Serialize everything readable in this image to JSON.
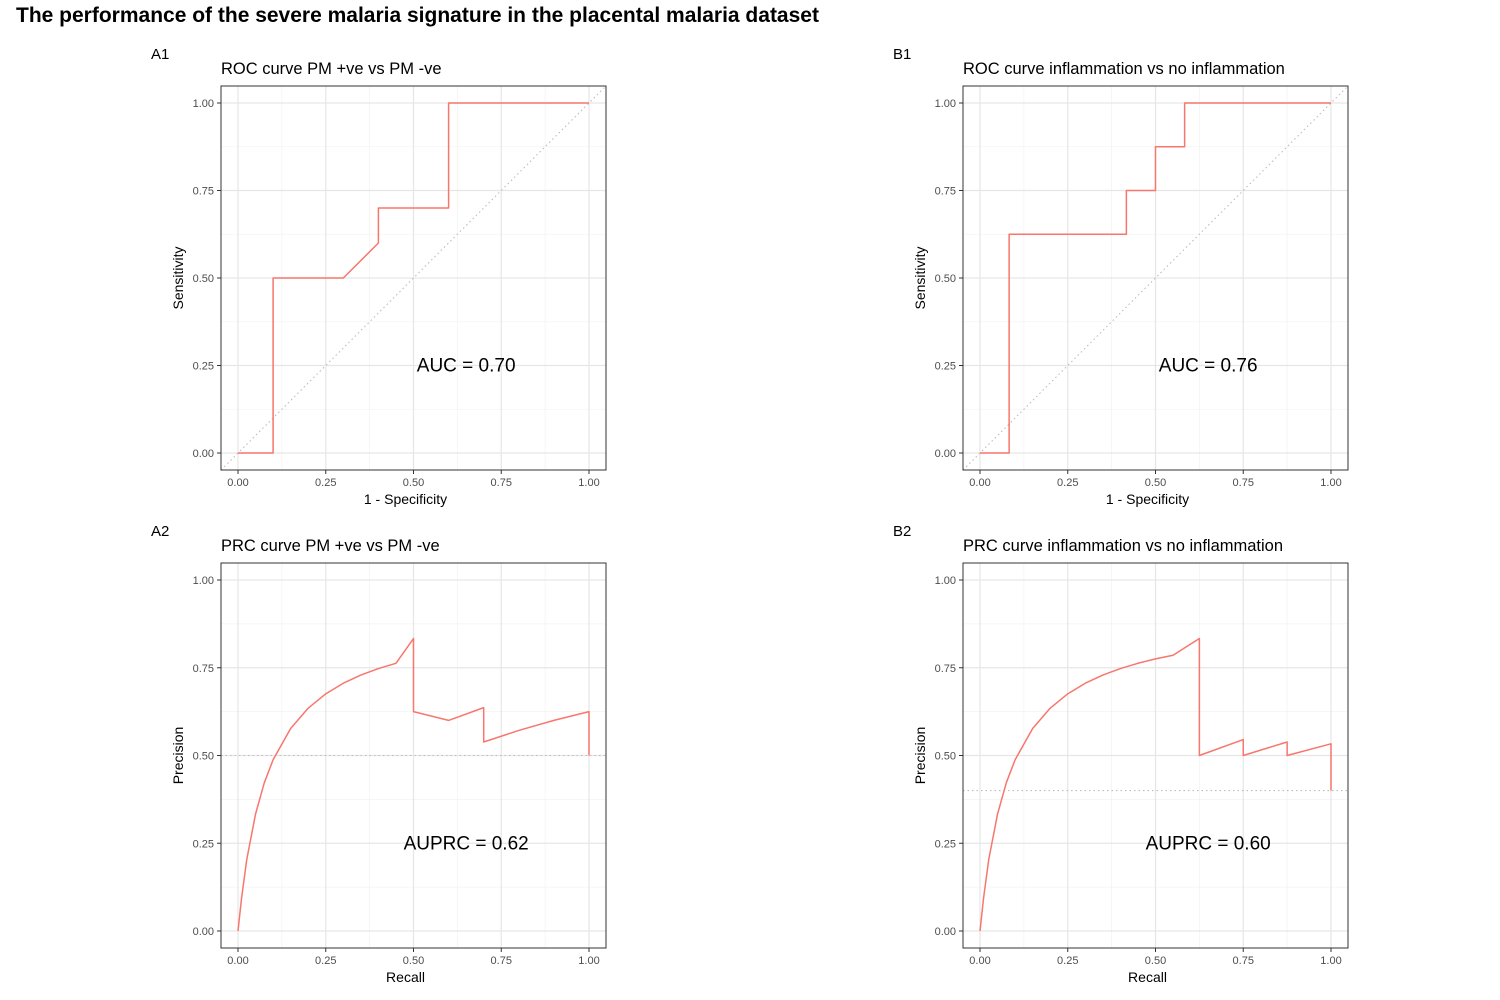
{
  "figure_title": "The performance of the severe malaria signature in the placental malaria dataset",
  "colors": {
    "curve": "#F8766D",
    "reference": "#BDBDBD",
    "grid_major": "#E6E6E6",
    "grid_minor": "#F3F3F3",
    "frame": "#333333"
  },
  "chart_data": [
    {
      "panel_tag": "A1",
      "type": "line",
      "title": "ROC curve PM +ve vs PM -ve",
      "xlabel": "1 - Specificity",
      "ylabel": "Sensitivity",
      "xlim": [
        0,
        1
      ],
      "ylim": [
        0,
        1
      ],
      "x_ticks": [
        "0.00",
        "0.25",
        "0.50",
        "0.75",
        "1.00"
      ],
      "y_ticks": [
        "0.00",
        "0.25",
        "0.50",
        "0.75",
        "1.00"
      ],
      "annotation": "AUC = 0.70",
      "grid": true,
      "reference": {
        "kind": "diagonal",
        "style": "dotted"
      },
      "series": [
        {
          "x": [
            0,
            0.1,
            0.1,
            0.3,
            0.4,
            0.4,
            0.6,
            0.6,
            1.0
          ],
          "y": [
            0,
            0,
            0.5,
            0.5,
            0.6,
            0.7,
            0.7,
            1.0,
            1.0
          ]
        }
      ]
    },
    {
      "panel_tag": "B1",
      "type": "line",
      "title": "ROC curve inflammation vs no inflammation",
      "xlabel": "1 - Specificity",
      "ylabel": "Sensitivity",
      "xlim": [
        0,
        1
      ],
      "ylim": [
        0,
        1
      ],
      "x_ticks": [
        "0.00",
        "0.25",
        "0.50",
        "0.75",
        "1.00"
      ],
      "y_ticks": [
        "0.00",
        "0.25",
        "0.50",
        "0.75",
        "1.00"
      ],
      "annotation": "AUC = 0.76",
      "grid": true,
      "reference": {
        "kind": "diagonal",
        "style": "dotted"
      },
      "series": [
        {
          "x": [
            0,
            0.083,
            0.083,
            0.417,
            0.417,
            0.5,
            0.5,
            0.583,
            0.583,
            1.0
          ],
          "y": [
            0,
            0,
            0.625,
            0.625,
            0.75,
            0.75,
            0.875,
            0.875,
            1.0,
            1.0
          ]
        }
      ]
    },
    {
      "panel_tag": "A2",
      "type": "line",
      "title": "PRC curve PM +ve vs PM -ve",
      "xlabel": "Recall",
      "ylabel": "Precision",
      "xlim": [
        0,
        1
      ],
      "ylim": [
        0,
        1
      ],
      "x_ticks": [
        "0.00",
        "0.25",
        "0.50",
        "0.75",
        "1.00"
      ],
      "y_ticks": [
        "0.00",
        "0.25",
        "0.50",
        "0.75",
        "1.00"
      ],
      "annotation": "AUPRC = 0.62",
      "grid": true,
      "reference": {
        "kind": "horizontal",
        "value": 0.5,
        "style": "dotted"
      },
      "series": [
        {
          "x": [
            0,
            0.01,
            0.025,
            0.05,
            0.075,
            0.1,
            0.15,
            0.2,
            0.25,
            0.3,
            0.35,
            0.4,
            0.45,
            0.5,
            0.5,
            0.6,
            0.7,
            0.7,
            0.8,
            0.9,
            1.0,
            1.0
          ],
          "y": [
            0,
            0.0926,
            0.2041,
            0.3333,
            0.4225,
            0.4878,
            0.5769,
            0.6349,
            0.6757,
            0.7059,
            0.7292,
            0.7477,
            0.7627,
            0.8333,
            0.625,
            0.6,
            0.6364,
            0.5385,
            0.5714,
            0.6,
            0.625,
            0.5
          ]
        }
      ]
    },
    {
      "panel_tag": "B2",
      "type": "line",
      "title": "PRC curve inflammation vs no inflammation",
      "xlabel": "Recall",
      "ylabel": "Precision",
      "xlim": [
        0,
        1
      ],
      "ylim": [
        0,
        1
      ],
      "x_ticks": [
        "0.00",
        "0.25",
        "0.50",
        "0.75",
        "1.00"
      ],
      "y_ticks": [
        "0.00",
        "0.25",
        "0.50",
        "0.75",
        "1.00"
      ],
      "annotation": "AUPRC = 0.60",
      "grid": true,
      "reference": {
        "kind": "horizontal",
        "value": 0.4,
        "style": "dotted"
      },
      "series": [
        {
          "x": [
            0,
            0.01,
            0.025,
            0.05,
            0.075,
            0.1,
            0.15,
            0.2,
            0.25,
            0.3,
            0.35,
            0.4,
            0.45,
            0.5,
            0.55,
            0.625,
            0.625,
            0.75,
            0.75,
            0.875,
            0.875,
            1.0,
            1.0
          ],
          "y": [
            0,
            0.0926,
            0.2041,
            0.3333,
            0.4225,
            0.4878,
            0.5769,
            0.6349,
            0.6757,
            0.7059,
            0.7292,
            0.7477,
            0.7627,
            0.7752,
            0.7857,
            0.8333,
            0.5,
            0.5455,
            0.5,
            0.5385,
            0.5,
            0.5333,
            0.4
          ]
        }
      ]
    }
  ]
}
